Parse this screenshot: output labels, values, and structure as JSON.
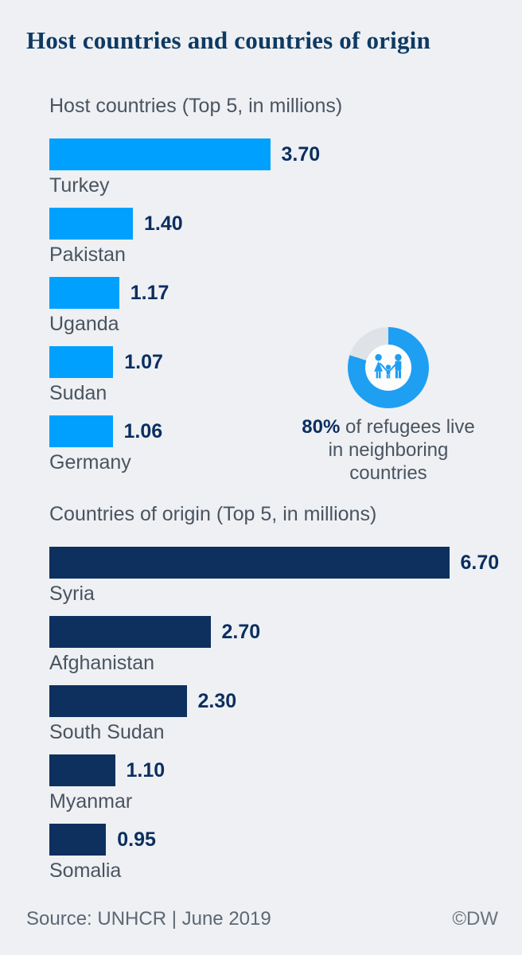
{
  "title": "Host countries and countries of origin",
  "colors": {
    "background": "#eef0f3",
    "title_navy": "#0e3a63",
    "label_gray": "#4a5460",
    "value_navy": "#0b2e5f",
    "host_bar_blue": "#00a0ff",
    "origin_bar_navy": "#0d305f",
    "donut_blue": "#1e9ff2",
    "donut_gray": "#dfe2e6",
    "footer_gray": "#5d6773"
  },
  "chart_data": [
    {
      "type": "bar",
      "orientation": "horizontal",
      "title": "Host countries (Top 5, in millions)",
      "categories": [
        "Turkey",
        "Pakistan",
        "Uganda",
        "Sudan",
        "Germany"
      ],
      "values": [
        3.7,
        1.4,
        1.17,
        1.07,
        1.06
      ],
      "value_labels": [
        "3.70",
        "1.40",
        "1.17",
        "1.07",
        "1.06"
      ],
      "bar_color": "#00a0ff",
      "xlim": [
        0,
        7
      ],
      "grid": false,
      "value_label_position": "right-of-bar"
    },
    {
      "type": "bar",
      "orientation": "horizontal",
      "title": "Countries of origin (Top 5, in millions)",
      "categories": [
        "Syria",
        "Afghanistan",
        "South Sudan",
        "Myanmar",
        "Somalia"
      ],
      "values": [
        6.7,
        2.7,
        2.3,
        1.1,
        0.95
      ],
      "value_labels": [
        "6.70",
        "2.70",
        "2.30",
        "1.10",
        "0.95"
      ],
      "bar_color": "#0d305f",
      "xlim": [
        0,
        7
      ],
      "grid": false,
      "value_label_position": "right-of-bar"
    },
    {
      "type": "pie",
      "title": "80% of refugees live in neighboring countries",
      "values": [
        80,
        20
      ],
      "labels": [
        "refugees in neighboring countries",
        "other"
      ],
      "colors": [
        "#1e9ff2",
        "#dfe2e6"
      ],
      "donut": true,
      "start_angle_deg": 0,
      "direction": "clockwise"
    }
  ],
  "donut": {
    "percent": 80,
    "caption_bold": "80%",
    "caption_rest": " of refugees live in neighboring countries",
    "color": "#1e9ff2",
    "remainder_color": "#dfe2e6",
    "icon": "family-icon"
  },
  "footer": {
    "source": "Source: UNHCR | June 2019",
    "copyright": "©DW"
  }
}
